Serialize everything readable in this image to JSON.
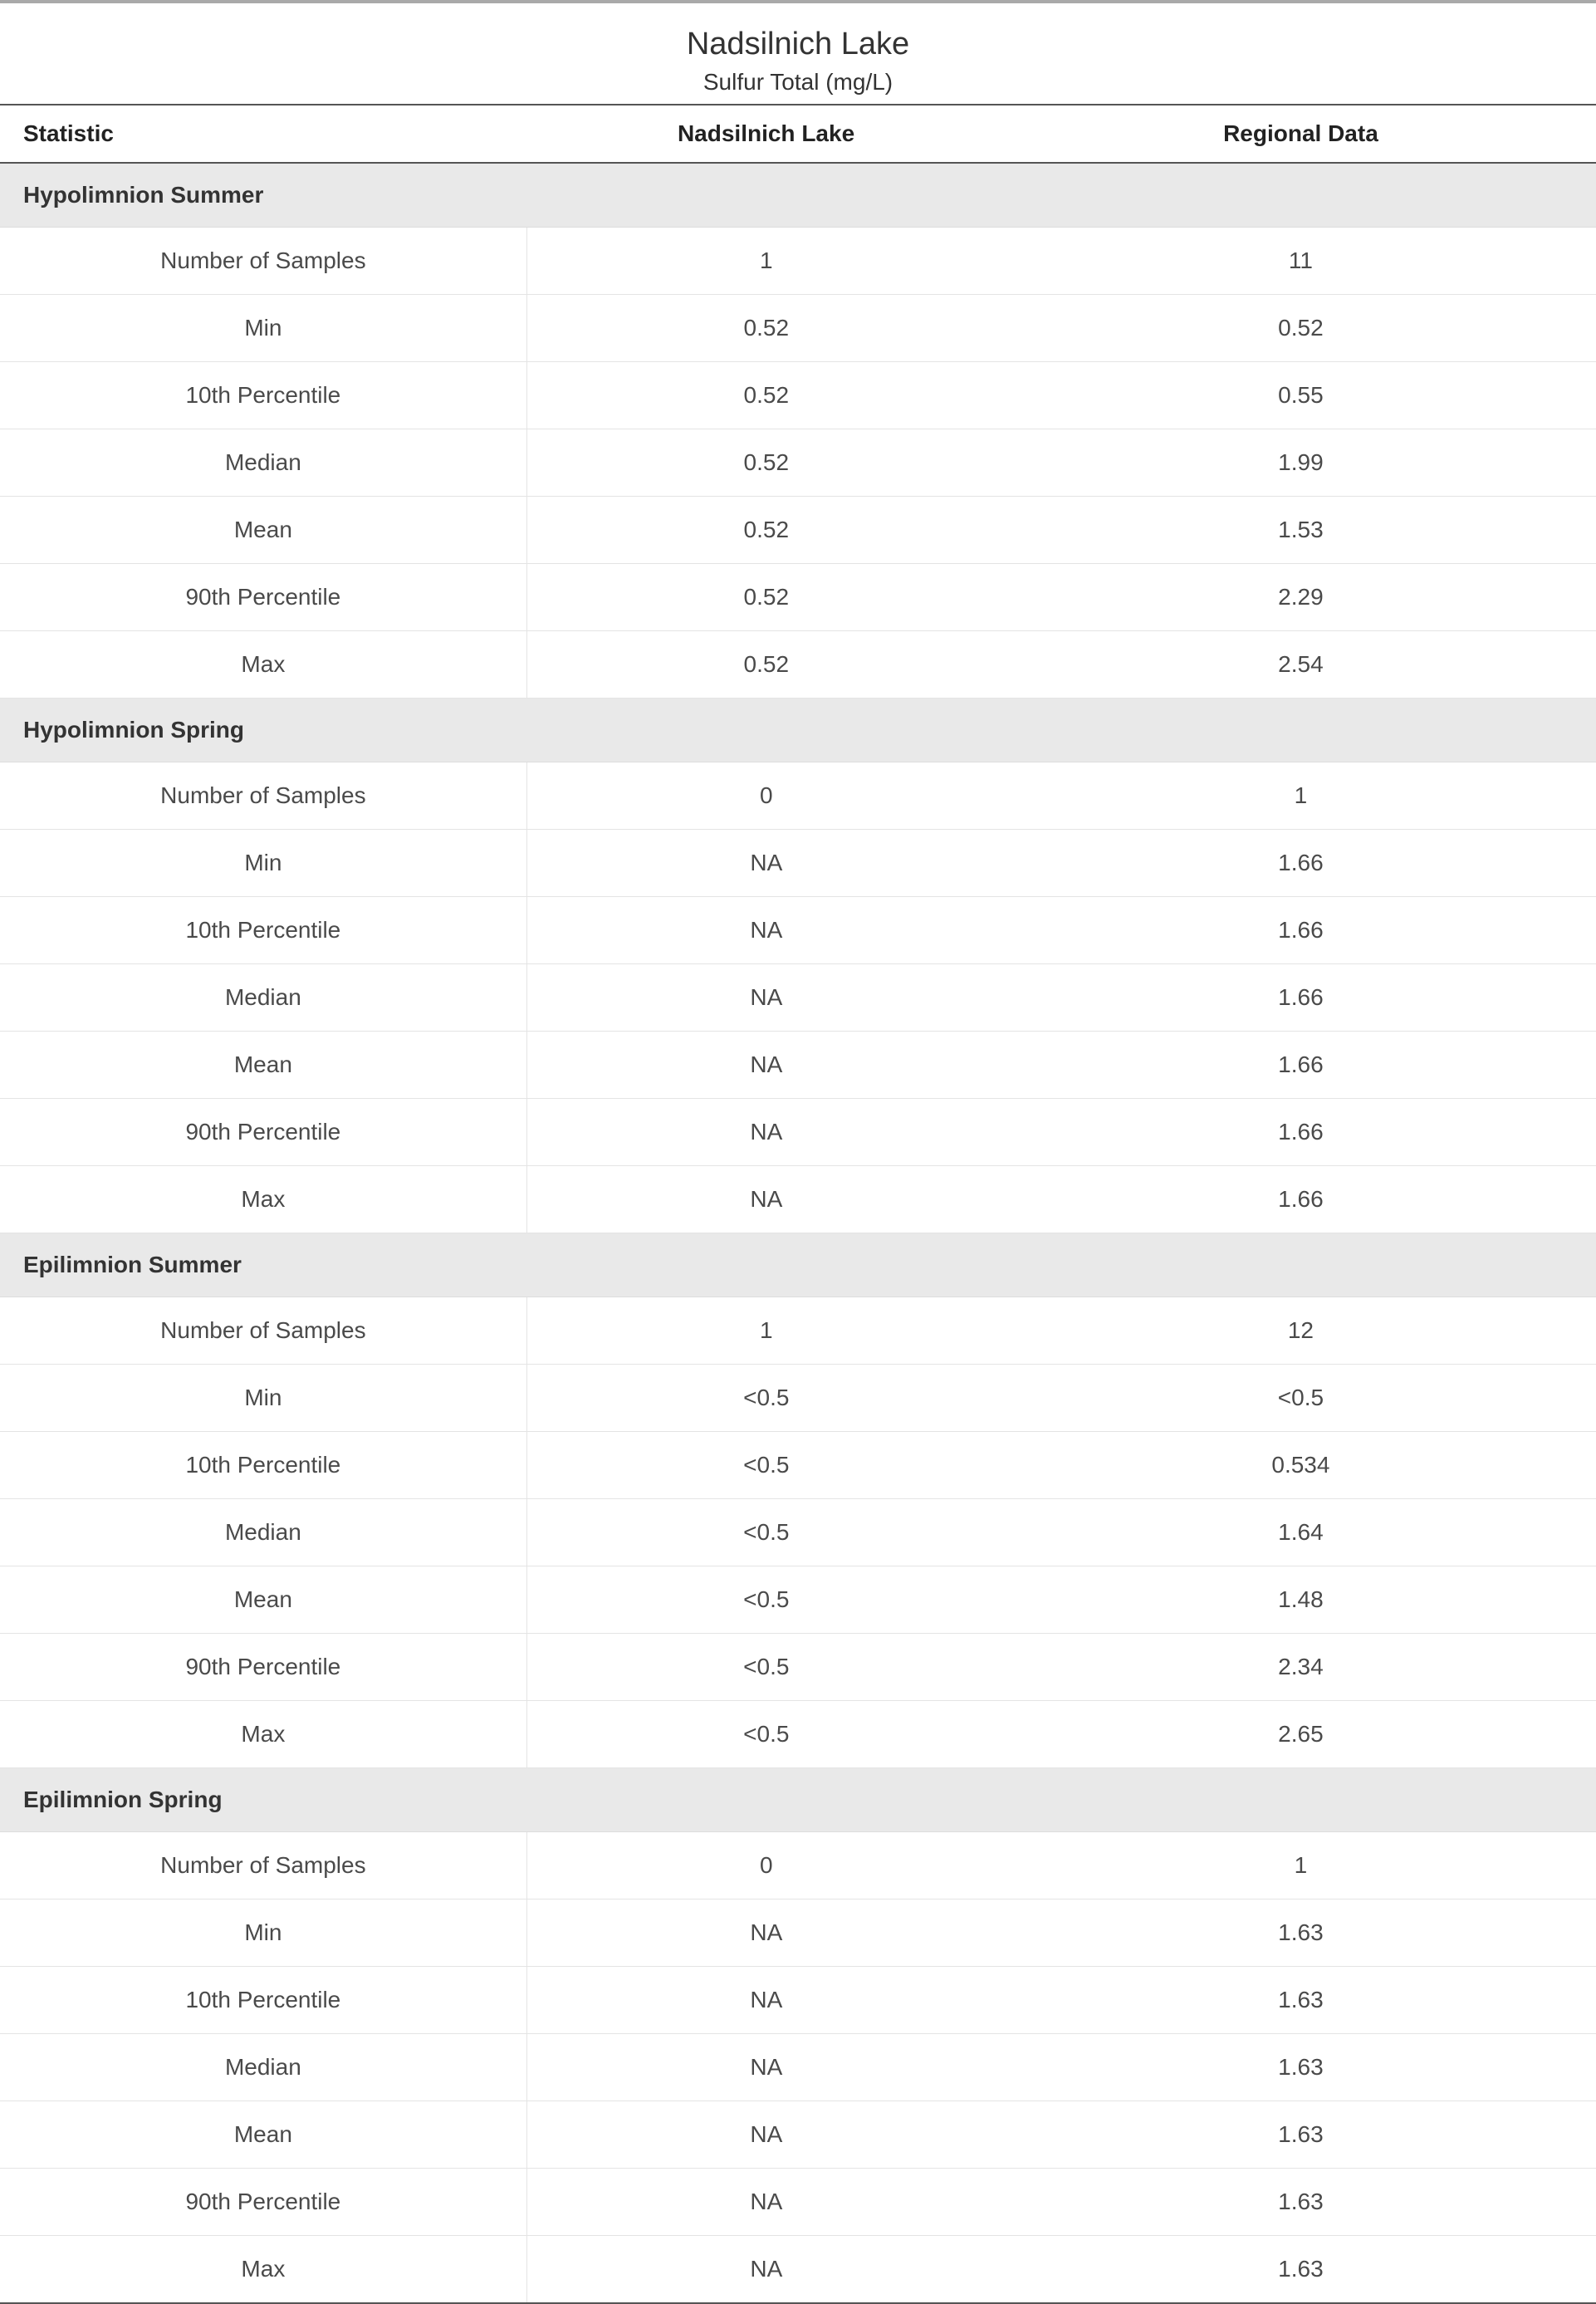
{
  "title": "Nadsilnich Lake",
  "subtitle": "Sulfur Total (mg/L)",
  "columns": [
    "Statistic",
    "Nadsilnich Lake",
    "Regional Data"
  ],
  "stat_labels": [
    "Number of Samples",
    "Min",
    "10th Percentile",
    "Median",
    "Mean",
    "90th Percentile",
    "Max"
  ],
  "sections": [
    {
      "name": "Hypolimnion Summer",
      "lake": [
        "1",
        "0.52",
        "0.52",
        "0.52",
        "0.52",
        "0.52",
        "0.52"
      ],
      "regional": [
        "11",
        "0.52",
        "0.55",
        "1.99",
        "1.53",
        "2.29",
        "2.54"
      ]
    },
    {
      "name": "Hypolimnion Spring",
      "lake": [
        "0",
        "NA",
        "NA",
        "NA",
        "NA",
        "NA",
        "NA"
      ],
      "regional": [
        "1",
        "1.66",
        "1.66",
        "1.66",
        "1.66",
        "1.66",
        "1.66"
      ]
    },
    {
      "name": "Epilimnion Summer",
      "lake": [
        "1",
        "<0.5",
        "<0.5",
        "<0.5",
        "<0.5",
        "<0.5",
        "<0.5"
      ],
      "regional": [
        "12",
        "<0.5",
        "0.534",
        "1.64",
        "1.48",
        "2.34",
        "2.65"
      ]
    },
    {
      "name": "Epilimnion Spring",
      "lake": [
        "0",
        "NA",
        "NA",
        "NA",
        "NA",
        "NA",
        "NA"
      ],
      "regional": [
        "1",
        "1.63",
        "1.63",
        "1.63",
        "1.63",
        "1.63",
        "1.63"
      ]
    }
  ],
  "styling": {
    "background_color": "#ffffff",
    "text_color": "#333333",
    "section_bg": "#e9e9e9",
    "row_border": "#e4e4e4",
    "header_border": "#555555",
    "top_rule": "#a9a9a9",
    "title_fontsize": 38,
    "subtitle_fontsize": 28,
    "cell_fontsize": 28
  }
}
